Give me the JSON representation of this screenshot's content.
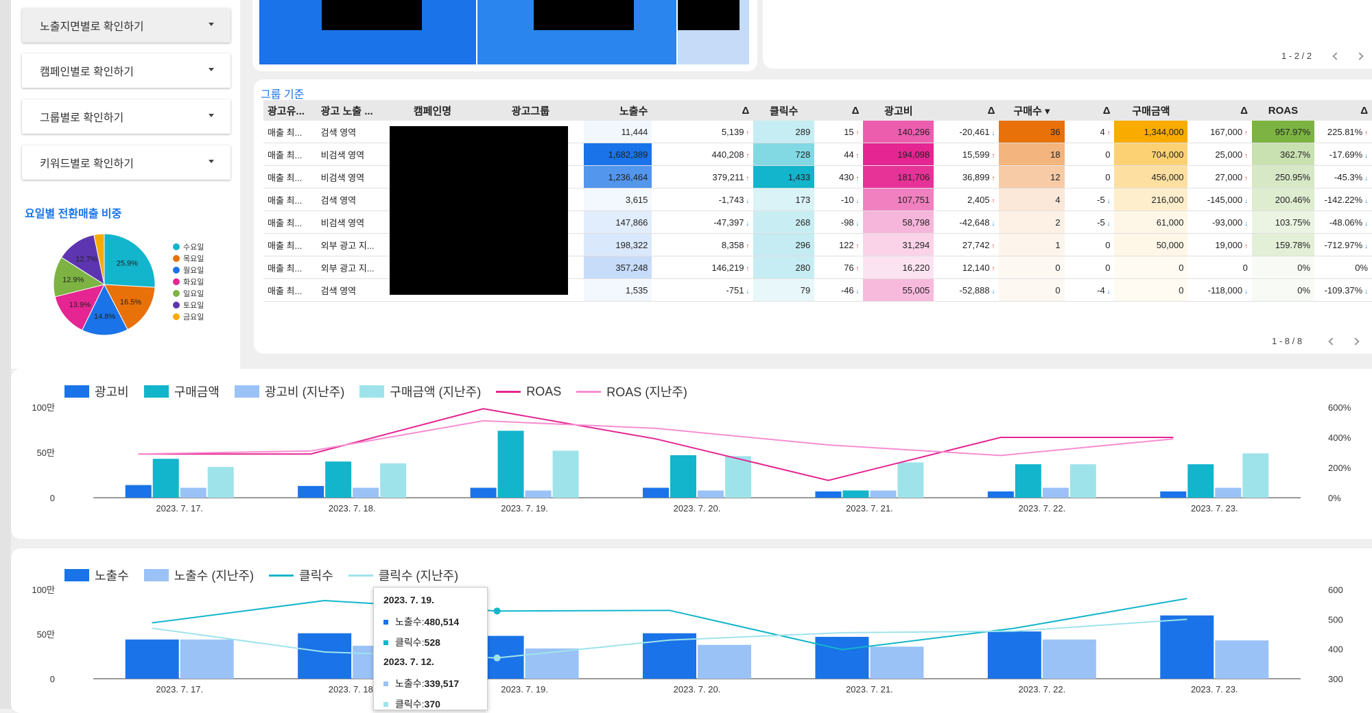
{
  "nav": {
    "items": [
      {
        "label": "노출지면별로 확인하기"
      },
      {
        "label": "캠페인별로 확인하기"
      },
      {
        "label": "그룹별로 확인하기"
      },
      {
        "label": "키워드별로 확인하기"
      }
    ]
  },
  "pie": {
    "title": "요일별 전환매출 비중",
    "slices": [
      {
        "label": "수요일",
        "value": 25.9,
        "color": "#12b5cb",
        "pct": "25.9%"
      },
      {
        "label": "목요일",
        "value": 16.5,
        "color": "#e8710a",
        "pct": "16.5%"
      },
      {
        "label": "월요일",
        "value": 14.8,
        "color": "#1a73e8",
        "pct": "14.8%"
      },
      {
        "label": "화요일",
        "value": 13.9,
        "color": "#e52592",
        "pct": "13.9%"
      },
      {
        "label": "일요일",
        "value": 12.9,
        "color": "#7cb342",
        "pct": "12.9%"
      },
      {
        "label": "토요일",
        "value": 12.7,
        "color": "#5e35b1",
        "pct": "12.7%"
      },
      {
        "label": "금요일",
        "value": 3.3,
        "color": "#f9ab00",
        "pct": ""
      }
    ]
  },
  "top_card": {
    "pager": "1 - 2 / 2"
  },
  "table": {
    "title": "그룹 기준",
    "pager": "1 - 8 / 8",
    "headers": [
      "광고유...",
      "광고 노출 ...",
      "캠페인명",
      "광고그룹",
      "노출수",
      "Δ",
      "클릭수",
      "Δ",
      "광고비",
      "Δ",
      "구매수 ▾",
      "Δ",
      "구매금액",
      "Δ",
      "ROAS",
      "Δ"
    ],
    "rows": [
      [
        "매출 최...",
        "검색 영역",
        "",
        "",
        "11,444",
        "5,139",
        "289",
        "15",
        "140,296",
        "-20,461",
        "36",
        "4",
        "1,344,000",
        "167,000",
        "957.97%",
        "225.81%"
      ],
      [
        "매출 최...",
        "비검색 영역",
        "",
        "",
        "1,682,389",
        "440,208",
        "728",
        "44",
        "194,098",
        "15,599",
        "18",
        "0",
        "704,000",
        "25,000",
        "362.7%",
        "-17.69%"
      ],
      [
        "매출 최...",
        "비검색 영역",
        "",
        "",
        "1,236,464",
        "379,211",
        "1,433",
        "430",
        "181,706",
        "36,899",
        "12",
        "0",
        "456,000",
        "27,000",
        "250.95%",
        "-45.3%"
      ],
      [
        "매출 최...",
        "검색 영역",
        "",
        "",
        "3,615",
        "-1,743",
        "173",
        "-10",
        "107,751",
        "2,405",
        "4",
        "-5",
        "216,000",
        "-145,000",
        "200.46%",
        "-142.22%"
      ],
      [
        "매출 최...",
        "비검색 영역",
        "",
        "",
        "147,866",
        "-47,397",
        "268",
        "-98",
        "58,798",
        "-42,648",
        "2",
        "-5",
        "61,000",
        "-93,000",
        "103.75%",
        "-48.06%"
      ],
      [
        "매출 최...",
        "외부 광고 지...",
        "",
        "",
        "198,322",
        "8,358",
        "296",
        "122",
        "31,294",
        "27,742",
        "1",
        "0",
        "50,000",
        "19,000",
        "159.78%",
        "-712.97%"
      ],
      [
        "매출 최...",
        "외부 광고 지...",
        "",
        "",
        "357,248",
        "146,219",
        "280",
        "76",
        "16,220",
        "12,140",
        "0",
        "0",
        "0",
        "0",
        "0%",
        "0%"
      ],
      [
        "매출 최...",
        "검색 영역",
        "",
        "",
        "1,535",
        "-751",
        "79",
        "-46",
        "55,005",
        "-52,888",
        "0",
        "-4",
        "0",
        "-118,000",
        "0%",
        "-109.37%"
      ]
    ]
  },
  "chart_data": [
    {
      "type": "bar",
      "categories": [
        "2023. 7. 17.",
        "2023. 7. 18.",
        "2023. 7. 19.",
        "2023. 7. 20.",
        "2023. 7. 21.",
        "2023. 7. 22.",
        "2023. 7. 23."
      ],
      "y_left_ticks": [
        "100만",
        "50만",
        "0"
      ],
      "y_right_ticks": [
        "600%",
        "400%",
        "200%",
        "0%"
      ],
      "y_left_range": [
        0,
        1000000
      ],
      "y_right_range": [
        0,
        600
      ],
      "series": [
        {
          "name": "광고비",
          "kind": "bar",
          "axis": "left",
          "color": "#1a73e8",
          "values": [
            140000,
            130000,
            110000,
            110000,
            70000,
            70000,
            70000
          ]
        },
        {
          "name": "구매금액",
          "kind": "bar",
          "axis": "left",
          "color": "#12b5cb",
          "values": [
            430000,
            400000,
            740000,
            470000,
            80000,
            370000,
            370000
          ]
        },
        {
          "name": "광고비 (지난주)",
          "kind": "bar",
          "axis": "left",
          "color": "#9ac2f7",
          "values": [
            110000,
            110000,
            80000,
            80000,
            80000,
            110000,
            110000
          ]
        },
        {
          "name": "구매금액 (지난주)",
          "kind": "bar",
          "axis": "left",
          "color": "#9fe3ea",
          "values": [
            340000,
            380000,
            520000,
            460000,
            390000,
            370000,
            490000
          ]
        },
        {
          "name": "ROAS",
          "kind": "line",
          "axis": "right",
          "color": "#e52592",
          "values": [
            290,
            290,
            590,
            390,
            115,
            400,
            400
          ]
        },
        {
          "name": "ROAS (지난주)",
          "kind": "line",
          "axis": "right",
          "color": "#f78ed0",
          "values": [
            290,
            310,
            510,
            460,
            350,
            280,
            390
          ]
        }
      ]
    },
    {
      "type": "bar",
      "categories": [
        "2023. 7. 17.",
        "2023. 7. 18.",
        "2023. 7. 19.",
        "2023. 7. 20.",
        "2023. 7. 21.",
        "2023. 7. 22.",
        "2023. 7. 23."
      ],
      "y_left_ticks": [
        "100만",
        "50만",
        "0"
      ],
      "y_right_ticks": [
        "600",
        "500",
        "400",
        "300"
      ],
      "y_left_range": [
        0,
        1000000
      ],
      "y_right_range": [
        300,
        600
      ],
      "series": [
        {
          "name": "노출수",
          "kind": "bar",
          "axis": "left",
          "color": "#1a73e8",
          "values": [
            440000,
            510000,
            480514,
            510000,
            470000,
            530000,
            710000
          ]
        },
        {
          "name": "노출수 (지난주)",
          "kind": "bar",
          "axis": "left",
          "color": "#9ac2f7",
          "values": [
            440000,
            370000,
            339517,
            380000,
            360000,
            440000,
            430000
          ]
        },
        {
          "name": "클릭수",
          "kind": "line",
          "axis": "right",
          "color": "#12b5cb",
          "values": [
            488,
            563,
            528,
            530,
            398,
            470,
            570
          ]
        },
        {
          "name": "클릭수 (지난주)",
          "kind": "line",
          "axis": "right",
          "color": "#9fe3ea",
          "values": [
            470,
            390,
            370,
            430,
            455,
            460,
            500
          ]
        }
      ]
    }
  ],
  "tooltip": {
    "date1": "2023. 7. 19.",
    "line1": "노출수: ",
    "val1": "480,514",
    "line2": "클릭수: ",
    "val2": "528",
    "date2": "2023. 7. 12.",
    "line3": "노출수: ",
    "val3": "339,517",
    "line4": "클릭수: ",
    "val4": "370"
  }
}
